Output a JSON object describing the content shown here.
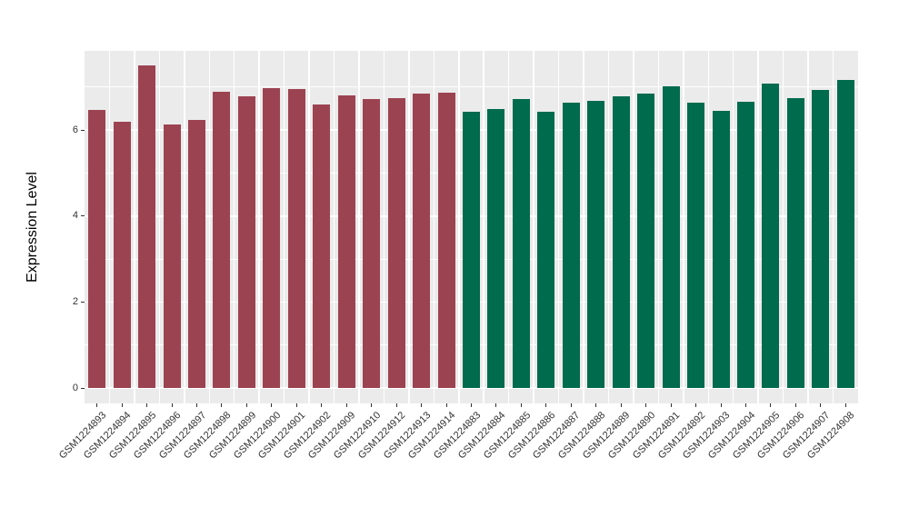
{
  "chart_data": {
    "type": "bar",
    "title": "",
    "xlabel": "",
    "ylabel": "Expression Level",
    "ylim": [
      0,
      7.86
    ],
    "yticks": [
      0,
      2,
      4,
      6
    ],
    "yticks_minor": [
      1,
      3,
      5,
      7
    ],
    "grid": "on",
    "legend": "none",
    "panel_background": "#EBEBEB",
    "gridline_color": "#FFFFFF",
    "axis_text_color": "#333333",
    "group_colors": {
      "group1": "#9C4351",
      "group2": "#016B4D"
    },
    "categories": [
      "GSM1224893",
      "GSM1224894",
      "GSM1224895",
      "GSM1224896",
      "GSM1224897",
      "GSM1224898",
      "GSM1224899",
      "GSM1224900",
      "GSM1224901",
      "GSM1224902",
      "GSM1224909",
      "GSM1224910",
      "GSM1224912",
      "GSM1224913",
      "GSM1224914",
      "GSM1224883",
      "GSM1224884",
      "GSM1224885",
      "GSM1224886",
      "GSM1224887",
      "GSM1224888",
      "GSM1224889",
      "GSM1224890",
      "GSM1224891",
      "GSM1224892",
      "GSM1224903",
      "GSM1224904",
      "GSM1224905",
      "GSM1224906",
      "GSM1224907",
      "GSM1224908"
    ],
    "values": [
      6.46,
      6.2,
      7.51,
      6.14,
      6.24,
      6.9,
      6.79,
      6.98,
      6.95,
      6.59,
      6.81,
      6.72,
      6.75,
      6.86,
      6.87,
      6.43,
      6.48,
      6.73,
      6.42,
      6.64,
      6.68,
      6.78,
      6.84,
      7.01,
      6.64,
      6.44,
      6.65,
      7.09,
      6.75,
      6.94,
      7.17
    ],
    "bar_groups": [
      "group1",
      "group1",
      "group1",
      "group1",
      "group1",
      "group1",
      "group1",
      "group1",
      "group1",
      "group1",
      "group1",
      "group1",
      "group1",
      "group1",
      "group1",
      "group2",
      "group2",
      "group2",
      "group2",
      "group2",
      "group2",
      "group2",
      "group2",
      "group2",
      "group2",
      "group2",
      "group2",
      "group2",
      "group2",
      "group2",
      "group2"
    ]
  }
}
